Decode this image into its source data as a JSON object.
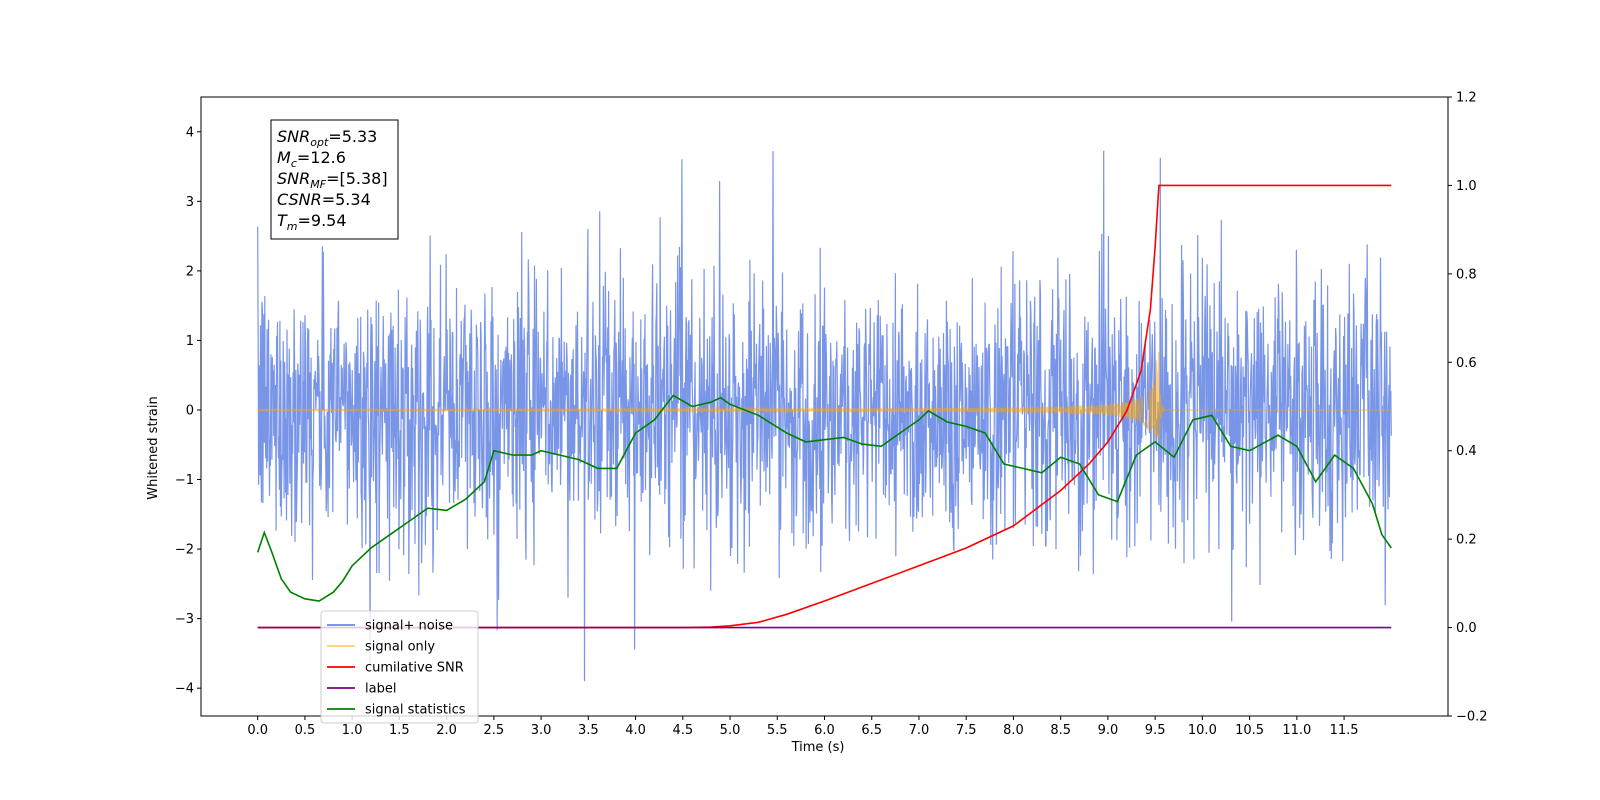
{
  "chart_data": {
    "type": "line",
    "xlabel": "Time (s)",
    "ylabel": "Whitened strain",
    "xlim": [
      -0.6,
      12.6
    ],
    "ylim_left": [
      -4.4,
      4.5
    ],
    "ylim_right": [
      -0.2,
      1.2
    ],
    "x_ticks": [
      0.0,
      0.5,
      1.0,
      1.5,
      2.0,
      2.5,
      3.0,
      3.5,
      4.0,
      4.5,
      5.0,
      5.5,
      6.0,
      6.5,
      7.0,
      7.5,
      8.0,
      8.5,
      9.0,
      9.5,
      10.0,
      10.5,
      11.0,
      11.5
    ],
    "x_tick_labels": [
      "0.0",
      "0.5",
      "1.0",
      "1.5",
      "2.0",
      "2.5",
      "3.0",
      "3.5",
      "4.0",
      "4.5",
      "5.0",
      "5.5",
      "6.0",
      "6.5",
      "7.0",
      "7.5",
      "8.0",
      "8.5",
      "9.0",
      "9.5",
      "10.0",
      "10.5",
      "11.0",
      "11.5"
    ],
    "y_left_ticks": [
      -4,
      -3,
      -2,
      -1,
      0,
      1,
      2,
      3,
      4
    ],
    "y_left_tick_labels": [
      "−4",
      "−3",
      "−2",
      "−1",
      "0",
      "1",
      "2",
      "3",
      "4"
    ],
    "y_right_ticks": [
      -0.2,
      0.0,
      0.2,
      0.4,
      0.6,
      0.8,
      1.0,
      1.2
    ],
    "y_right_tick_labels": [
      "−0.2",
      "0.0",
      "0.2",
      "0.4",
      "0.6",
      "0.8",
      "1.0",
      "1.2"
    ],
    "grid": false,
    "legend_position": "lower-left",
    "annotation": {
      "lines": [
        {
          "base": "SNR",
          "sub": "opt",
          "rest": "=5.33"
        },
        {
          "base": "M",
          "sub": "c",
          "rest": "=12.6"
        },
        {
          "base": "SNR",
          "sub": "MF",
          "rest": "=[5.38]"
        },
        {
          "base": "CSNR",
          "sub": "",
          "rest": "=5.34"
        },
        {
          "base": "T",
          "sub": "m",
          "rest": "=9.54"
        }
      ]
    },
    "series": [
      {
        "name": "signal+ noise",
        "axis": "left",
        "color": "#6a8ae6",
        "kind": "noise",
        "x_range": [
          0.0,
          12.0
        ],
        "y_range_approx": [
          -3.9,
          4.1
        ],
        "typical_band": [
          -2.0,
          2.0
        ]
      },
      {
        "name": "signal only",
        "axis": "left",
        "color": "#ffa500",
        "kind": "chirp",
        "x_range": [
          0.0,
          12.0
        ],
        "merger_time": 9.54,
        "peak_amplitude": 1.0
      },
      {
        "name": "cumilative SNR",
        "axis": "right",
        "color": "#ff0000",
        "x": [
          0.0,
          4.5,
          4.8,
          5.0,
          5.3,
          5.6,
          6.0,
          6.5,
          7.0,
          7.5,
          8.0,
          8.5,
          8.8,
          9.0,
          9.2,
          9.35,
          9.45,
          9.5,
          9.54,
          9.6,
          10.0,
          11.0,
          12.0
        ],
        "values": [
          0.0,
          0.0,
          0.001,
          0.004,
          0.012,
          0.03,
          0.06,
          0.1,
          0.14,
          0.18,
          0.23,
          0.31,
          0.37,
          0.42,
          0.49,
          0.58,
          0.72,
          0.86,
          1.0,
          1.0,
          1.0,
          1.0,
          1.0
        ]
      },
      {
        "name": "label",
        "axis": "right",
        "color": "#800080",
        "x": [
          0.0,
          12.0
        ],
        "values": [
          0.0,
          0.0
        ]
      },
      {
        "name": "signal statistics",
        "axis": "right",
        "color": "#008000",
        "x": [
          0.0,
          0.07,
          0.15,
          0.25,
          0.35,
          0.5,
          0.65,
          0.8,
          0.9,
          1.0,
          1.2,
          1.4,
          1.6,
          1.8,
          2.0,
          2.2,
          2.4,
          2.5,
          2.7,
          2.9,
          3.0,
          3.2,
          3.4,
          3.6,
          3.8,
          4.0,
          4.2,
          4.4,
          4.6,
          4.8,
          4.9,
          5.0,
          5.3,
          5.6,
          5.8,
          6.0,
          6.2,
          6.4,
          6.6,
          6.8,
          7.0,
          7.1,
          7.3,
          7.5,
          7.7,
          7.9,
          8.1,
          8.3,
          8.5,
          8.7,
          8.9,
          9.1,
          9.3,
          9.5,
          9.7,
          9.9,
          10.1,
          10.3,
          10.5,
          10.8,
          11.0,
          11.2,
          11.4,
          11.6,
          11.8,
          11.9,
          12.0
        ],
        "values": [
          0.17,
          0.215,
          0.17,
          0.11,
          0.08,
          0.065,
          0.06,
          0.08,
          0.105,
          0.14,
          0.18,
          0.21,
          0.24,
          0.27,
          0.265,
          0.29,
          0.33,
          0.4,
          0.39,
          0.39,
          0.4,
          0.39,
          0.38,
          0.36,
          0.36,
          0.44,
          0.47,
          0.525,
          0.5,
          0.51,
          0.52,
          0.505,
          0.48,
          0.44,
          0.42,
          0.425,
          0.43,
          0.415,
          0.41,
          0.44,
          0.47,
          0.49,
          0.465,
          0.455,
          0.44,
          0.37,
          0.36,
          0.35,
          0.385,
          0.37,
          0.3,
          0.285,
          0.39,
          0.42,
          0.385,
          0.47,
          0.48,
          0.41,
          0.4,
          0.435,
          0.41,
          0.33,
          0.39,
          0.36,
          0.28,
          0.21,
          0.18
        ]
      }
    ]
  }
}
